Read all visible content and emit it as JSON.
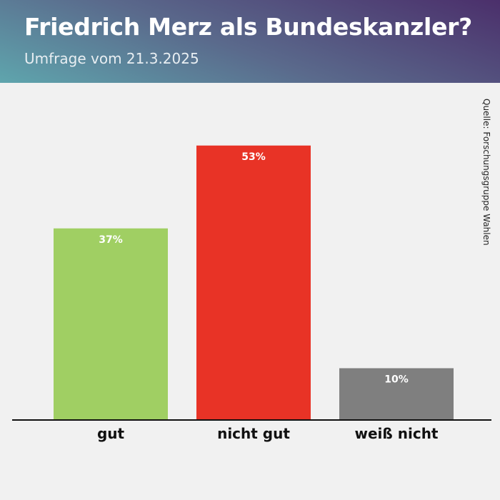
{
  "header": {
    "title": "Friedrich Merz als Bundeskanzler?",
    "subtitle": "Umfrage vom 21.3.2025"
  },
  "source": "Quelle: Forschungsgruppe Wahlen",
  "chart_data": {
    "type": "bar",
    "title": "Friedrich Merz als Bundeskanzler?",
    "subtitle": "Umfrage vom 21.3.2025",
    "categories": [
      "gut",
      "nicht gut",
      "weiß nicht"
    ],
    "values": [
      37,
      53,
      10
    ],
    "value_labels": [
      "37%",
      "53%",
      "10%"
    ],
    "colors": [
      "#a0cf63",
      "#e83326",
      "#7f7f7f"
    ],
    "xlabel": "",
    "ylabel": "",
    "ylim": [
      0,
      60
    ],
    "grid": false,
    "legend": "none"
  }
}
